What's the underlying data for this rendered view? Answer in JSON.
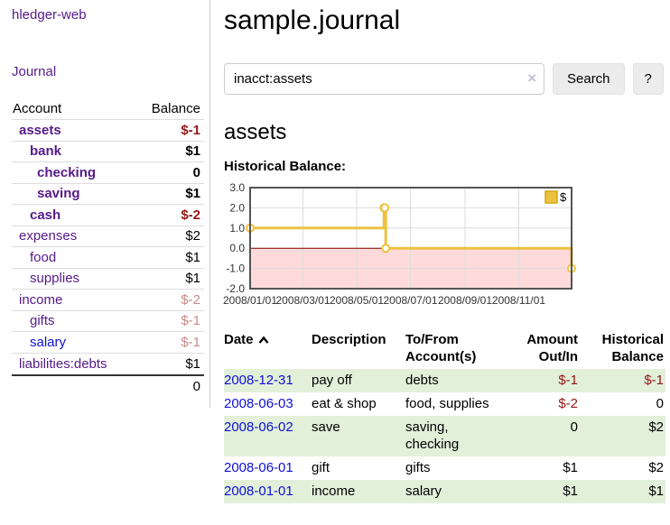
{
  "colors": {
    "link_purple": "#551a8b",
    "link_blue": "#0f0fd6",
    "negative_red": "#941717",
    "faded_negative_red": "#c98a8a",
    "row_stripe_green": "#e2f0da",
    "chart_series_yellow": "#edc240",
    "chart_negative_region_pink": "#ffdada",
    "chart_zero_line_red": "#8b0000"
  },
  "sidebar": {
    "brand": "hledger-web",
    "nav_journal": "Journal",
    "header": {
      "account": "Account",
      "balance": "Balance"
    },
    "accounts": [
      {
        "name": "assets",
        "indent": 1,
        "balance": "$-1",
        "bold": true,
        "balance_color": "negative"
      },
      {
        "name": "bank",
        "indent": 2,
        "balance": "$1",
        "bold": true,
        "balance_color": "normal"
      },
      {
        "name": "checking",
        "indent": 3,
        "balance": "0",
        "bold": true,
        "balance_color": "normal"
      },
      {
        "name": "saving",
        "indent": 3,
        "balance": "$1",
        "bold": true,
        "balance_color": "normal"
      },
      {
        "name": "cash",
        "indent": 2,
        "balance": "$-2",
        "bold": true,
        "balance_color": "negative"
      },
      {
        "name": "expenses",
        "indent": 1,
        "balance": "$2",
        "bold": false,
        "balance_color": "normal"
      },
      {
        "name": "food",
        "indent": 2,
        "balance": "$1",
        "bold": false,
        "balance_color": "normal"
      },
      {
        "name": "supplies",
        "indent": 2,
        "balance": "$1",
        "bold": false,
        "balance_color": "normal"
      },
      {
        "name": "income",
        "indent": 1,
        "balance": "$-2",
        "bold": false,
        "balance_color": "faded-negative"
      },
      {
        "name": "gifts",
        "indent": 2,
        "balance": "$-1",
        "bold": false,
        "balance_color": "faded-negative"
      },
      {
        "name": "salary",
        "indent": 2,
        "balance": "$-1",
        "bold": false,
        "balance_color": "faded-negative",
        "link_color": "blue"
      },
      {
        "name": "liabilities:debts",
        "indent": 1,
        "balance": "$1",
        "bold": false,
        "balance_color": "normal"
      }
    ],
    "total": "0"
  },
  "header": {
    "title": "sample.journal"
  },
  "search": {
    "value": "inacct:assets",
    "clear_icon": "×",
    "button_label": "Search",
    "help_label": "?"
  },
  "account_page": {
    "heading": "assets",
    "chart_heading": "Historical Balance:"
  },
  "chart_data": {
    "type": "line",
    "title": "Historical Balance:",
    "step": true,
    "series": [
      {
        "name": "$",
        "color": "#edc240",
        "points": [
          [
            "2008-01-01",
            1
          ],
          [
            "2008-06-01",
            2
          ],
          [
            "2008-06-02",
            2
          ],
          [
            "2008-06-03",
            0
          ],
          [
            "2008-12-31",
            -1
          ]
        ]
      }
    ],
    "x_range": [
      "2008-01-01",
      "2008-12-31"
    ],
    "ylim": [
      -2,
      3
    ],
    "yticks": [
      3.0,
      2.0,
      1.0,
      0.0,
      -1.0,
      -2.0
    ],
    "xticks": [
      "2008/01/01",
      "2008/03/01",
      "2008/05/01",
      "2008/07/01",
      "2008/09/01",
      "2008/11/01"
    ],
    "legend": "$",
    "legend_position": "top-right",
    "grid": true,
    "negative_region_color": "#ffdada",
    "zero_line_color": "#8b0000"
  },
  "register": {
    "columns": [
      {
        "label": "Date",
        "sorted": "asc"
      },
      {
        "label": "Description"
      },
      {
        "label": "To/From\nAccount(s)"
      },
      {
        "label": "Amount\nOut/In",
        "align": "right"
      },
      {
        "label": "Historical\nBalance",
        "align": "right"
      }
    ],
    "rows": [
      {
        "date": "2008-12-31",
        "description": "pay off",
        "accounts": "debts",
        "amount": "$-1",
        "amount_negative": true,
        "balance": "$-1",
        "balance_negative": true
      },
      {
        "date": "2008-06-03",
        "description": "eat & shop",
        "accounts": "food, supplies",
        "amount": "$-2",
        "amount_negative": true,
        "balance": "0",
        "balance_negative": false
      },
      {
        "date": "2008-06-02",
        "description": "save",
        "accounts": "saving, checking",
        "amount": "0",
        "amount_negative": false,
        "balance": "$2",
        "balance_negative": false
      },
      {
        "date": "2008-06-01",
        "description": "gift",
        "accounts": "gifts",
        "amount": "$1",
        "amount_negative": false,
        "balance": "$2",
        "balance_negative": false
      },
      {
        "date": "2008-01-01",
        "description": "income",
        "accounts": "salary",
        "amount": "$1",
        "amount_negative": false,
        "balance": "$1",
        "balance_negative": false
      }
    ]
  }
}
